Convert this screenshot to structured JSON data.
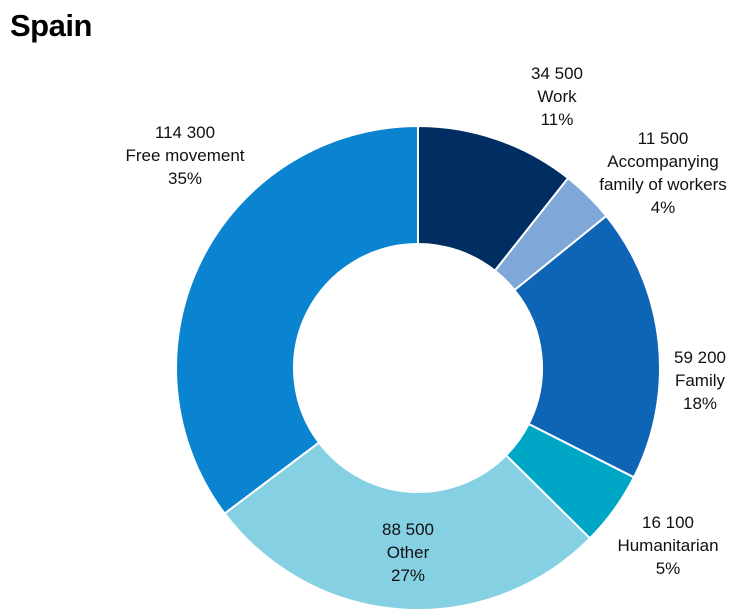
{
  "chart_data": {
    "type": "donut",
    "title": "Spain",
    "categories": [
      "Work",
      "Accompanying family of workers",
      "Family",
      "Humanitarian",
      "Other",
      "Free movement"
    ],
    "values": [
      34500,
      11500,
      59200,
      16100,
      88500,
      114300
    ],
    "value_labels": [
      "34 500",
      "11 500",
      "59 200",
      "16 100",
      "88 500",
      "114 300"
    ],
    "percent_labels": [
      "11%",
      "4%",
      "18%",
      "5%",
      "27%",
      "35%"
    ],
    "colors": [
      "#002d62",
      "#7fa8d8",
      "#0f65b5",
      "#00a6c6",
      "#85d0e2",
      "#0a84d0"
    ]
  }
}
